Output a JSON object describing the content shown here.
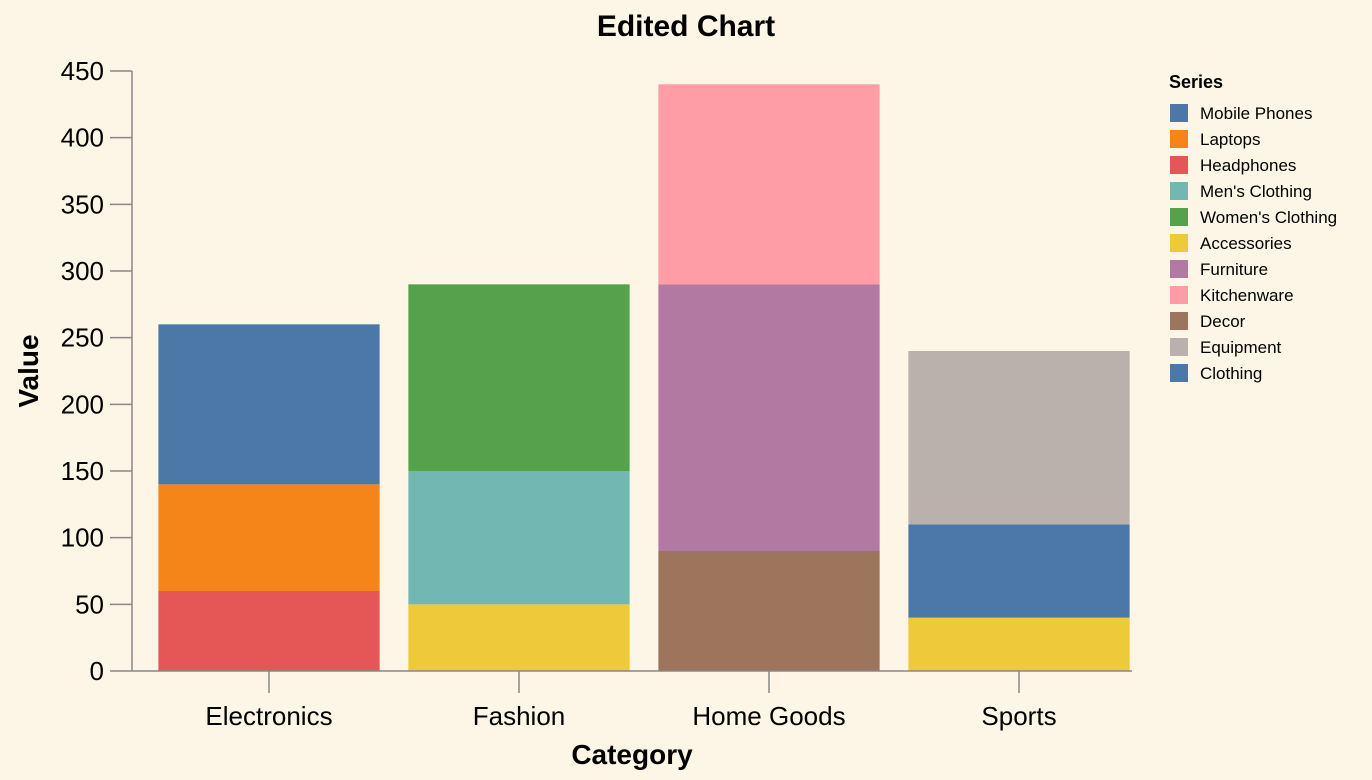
{
  "chart_data": {
    "type": "bar",
    "stacked": true,
    "title": "Edited Chart",
    "xlabel": "Category",
    "ylabel": "Value",
    "ylim": [
      0,
      450
    ],
    "yticks": [
      "0",
      "50",
      "100",
      "150",
      "200",
      "250",
      "300",
      "350",
      "400",
      "450"
    ],
    "grid": false,
    "legend": {
      "title": "Series",
      "position": "right"
    },
    "categories": [
      "Electronics",
      "Fashion",
      "Home Goods",
      "Sports"
    ],
    "legend_entries": [
      {
        "name": "Mobile Phones",
        "color": "#4c78a8"
      },
      {
        "name": "Laptops",
        "color": "#f58518"
      },
      {
        "name": "Headphones",
        "color": "#e45756"
      },
      {
        "name": "Men's Clothing",
        "color": "#72b7b2"
      },
      {
        "name": "Women's Clothing",
        "color": "#54a24b"
      },
      {
        "name": "Accessories",
        "color": "#eeca3b"
      },
      {
        "name": "Furniture",
        "color": "#b279a2"
      },
      {
        "name": "Kitchenware",
        "color": "#ff9da6"
      },
      {
        "name": "Decor",
        "color": "#9d755d"
      },
      {
        "name": "Equipment",
        "color": "#bab0ac"
      },
      {
        "name": "Clothing",
        "color": "#4c78a8"
      }
    ],
    "stacks": [
      {
        "category": "Electronics",
        "segments": [
          {
            "series": "Headphones",
            "value": 60,
            "color": "#e45756"
          },
          {
            "series": "Laptops",
            "value": 80,
            "color": "#f58518"
          },
          {
            "series": "Mobile Phones",
            "value": 120,
            "color": "#4c78a8"
          }
        ]
      },
      {
        "category": "Fashion",
        "segments": [
          {
            "series": "Accessories",
            "value": 50,
            "color": "#eeca3b"
          },
          {
            "series": "Men's Clothing",
            "value": 100,
            "color": "#72b7b2"
          },
          {
            "series": "Women's Clothing",
            "value": 140,
            "color": "#54a24b"
          }
        ]
      },
      {
        "category": "Home Goods",
        "segments": [
          {
            "series": "Decor",
            "value": 90,
            "color": "#9d755d"
          },
          {
            "series": "Furniture",
            "value": 200,
            "color": "#b279a2"
          },
          {
            "series": "Kitchenware",
            "value": 150,
            "color": "#ff9da6"
          }
        ]
      },
      {
        "category": "Sports",
        "segments": [
          {
            "series": "Accessories",
            "value": 40,
            "color": "#eeca3b"
          },
          {
            "series": "Clothing",
            "value": 70,
            "color": "#4c78a8"
          },
          {
            "series": "Equipment",
            "value": 130,
            "color": "#bab0ac"
          }
        ]
      }
    ]
  }
}
